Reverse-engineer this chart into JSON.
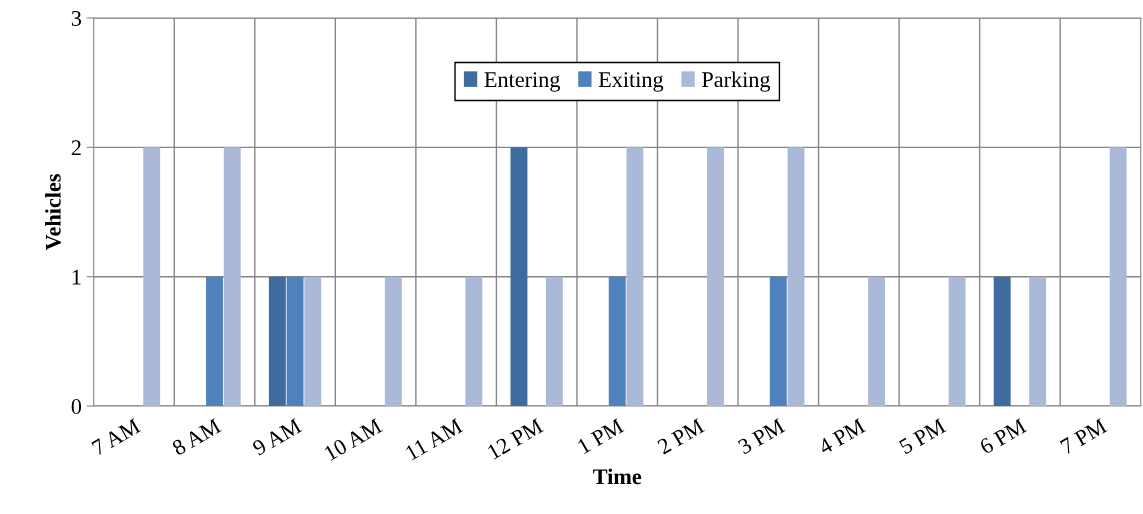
{
  "chart_data": {
    "type": "bar",
    "xlabel": "Time",
    "ylabel": "Vehicles",
    "categories": [
      "7 AM",
      "8 AM",
      "9 AM",
      "10 AM",
      "11 AM",
      "12 PM",
      "1 PM",
      "2 PM",
      "3 PM",
      "4 PM",
      "5 PM",
      "6 PM",
      "7 PM"
    ],
    "series": [
      {
        "name": "Entering",
        "color": "#3f6b9e",
        "values": [
          0,
          0,
          1,
          0,
          0,
          2,
          0,
          0,
          0,
          0,
          0,
          1,
          0
        ]
      },
      {
        "name": "Exiting",
        "color": "#4f81bd",
        "values": [
          0,
          1,
          1,
          0,
          0,
          0,
          1,
          0,
          1,
          0,
          0,
          0,
          0
        ]
      },
      {
        "name": "Parking",
        "color": "#aab9d8",
        "values": [
          2,
          2,
          1,
          1,
          1,
          1,
          2,
          2,
          2,
          1,
          1,
          1,
          2
        ]
      }
    ],
    "ylim": [
      0,
      3
    ],
    "yticks": [
      0,
      1,
      2,
      3
    ],
    "grid": true,
    "legend": "top"
  }
}
